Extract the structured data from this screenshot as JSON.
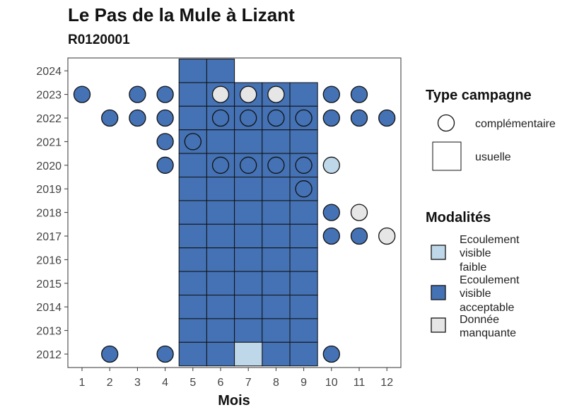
{
  "title": "Le Pas de la Mule à Lizant",
  "subtitle": "R0120001",
  "colors": {
    "Ecoulement visible faible": "#bfd8e9",
    "Ecoulement visible acceptable": "#4472b4",
    "Donnée manquante": "#e6e6e6"
  },
  "legend": {
    "shape_title": "Type campagne",
    "shapes": [
      "complémentaire",
      "usuelle"
    ],
    "fill_title": "Modalités",
    "fills": [
      {
        "lines": [
          "Ecoulement",
          "visible",
          "faible"
        ],
        "key": "Ecoulement visible faible"
      },
      {
        "lines": [
          "Ecoulement",
          "visible",
          "acceptable"
        ],
        "key": "Ecoulement visible acceptable"
      },
      {
        "lines": [
          "Donnée",
          "manquante"
        ],
        "key": "Donnée manquante"
      }
    ]
  },
  "chart_data": {
    "type": "scatter",
    "title": "Le Pas de la Mule à Lizant",
    "subtitle": "R0120001",
    "xlabel": "Mois",
    "ylabel": "",
    "x_ticks": [
      1,
      2,
      3,
      4,
      5,
      6,
      7,
      8,
      9,
      10,
      11,
      12
    ],
    "y_ticks": [
      2012,
      2013,
      2014,
      2015,
      2016,
      2017,
      2018,
      2019,
      2020,
      2021,
      2022,
      2023,
      2024
    ],
    "grid": false,
    "legend_position": "right",
    "usuelle": [
      {
        "year": 2024,
        "months": [
          5,
          6
        ],
        "modalite": "Ecoulement visible acceptable"
      },
      {
        "year": 2023,
        "months": [
          5,
          6,
          7,
          8,
          9
        ],
        "modalite": "Ecoulement visible acceptable"
      },
      {
        "year": 2022,
        "months": [
          5,
          6,
          7,
          8,
          9
        ],
        "modalite": "Ecoulement visible acceptable"
      },
      {
        "year": 2021,
        "months": [
          5,
          6,
          7,
          8,
          9
        ],
        "modalite": "Ecoulement visible acceptable"
      },
      {
        "year": 2020,
        "months": [
          5,
          6,
          7,
          8,
          9
        ],
        "modalite": "Ecoulement visible acceptable"
      },
      {
        "year": 2019,
        "months": [
          5,
          6,
          7,
          8,
          9
        ],
        "modalite": "Ecoulement visible acceptable"
      },
      {
        "year": 2018,
        "months": [
          5,
          6,
          7,
          8,
          9
        ],
        "modalite": "Ecoulement visible acceptable"
      },
      {
        "year": 2017,
        "months": [
          5,
          6,
          7,
          8,
          9
        ],
        "modalite": "Ecoulement visible acceptable"
      },
      {
        "year": 2016,
        "months": [
          5,
          6,
          7,
          8,
          9
        ],
        "modalite": "Ecoulement visible acceptable"
      },
      {
        "year": 2015,
        "months": [
          5,
          6,
          7,
          8,
          9
        ],
        "modalite": "Ecoulement visible acceptable"
      },
      {
        "year": 2014,
        "months": [
          5,
          6,
          7,
          8,
          9
        ],
        "modalite": "Ecoulement visible acceptable"
      },
      {
        "year": 2013,
        "months": [
          5,
          6,
          7,
          8,
          9
        ],
        "modalite": "Ecoulement visible acceptable"
      },
      {
        "year": 2012,
        "months": [
          5,
          6,
          8,
          9
        ],
        "modalite": "Ecoulement visible acceptable"
      },
      {
        "year": 2012,
        "months": [
          7
        ],
        "modalite": "Ecoulement visible faible"
      }
    ],
    "complementaire": [
      {
        "year": 2023,
        "months": [
          1,
          3,
          4,
          10,
          11
        ],
        "modalite": "Ecoulement visible acceptable"
      },
      {
        "year": 2023,
        "months": [
          6,
          7,
          8
        ],
        "modalite": "Donnée manquante"
      },
      {
        "year": 2022,
        "months": [
          2,
          3,
          4,
          6,
          7,
          8,
          9,
          10,
          11,
          12
        ],
        "modalite": "Ecoulement visible acceptable"
      },
      {
        "year": 2021,
        "months": [
          4,
          5
        ],
        "modalite": "Ecoulement visible acceptable"
      },
      {
        "year": 2020,
        "months": [
          4,
          6,
          7,
          8,
          9
        ],
        "modalite": "Ecoulement visible acceptable"
      },
      {
        "year": 2020,
        "months": [
          10
        ],
        "modalite": "Ecoulement visible faible"
      },
      {
        "year": 2019,
        "months": [
          9
        ],
        "modalite": "Ecoulement visible acceptable"
      },
      {
        "year": 2018,
        "months": [
          10
        ],
        "modalite": "Ecoulement visible acceptable"
      },
      {
        "year": 2018,
        "months": [
          11
        ],
        "modalite": "Donnée manquante"
      },
      {
        "year": 2017,
        "months": [
          10,
          11
        ],
        "modalite": "Ecoulement visible acceptable"
      },
      {
        "year": 2017,
        "months": [
          12
        ],
        "modalite": "Donnée manquante"
      },
      {
        "year": 2012,
        "months": [
          2,
          4,
          10
        ],
        "modalite": "Ecoulement visible acceptable"
      }
    ]
  }
}
